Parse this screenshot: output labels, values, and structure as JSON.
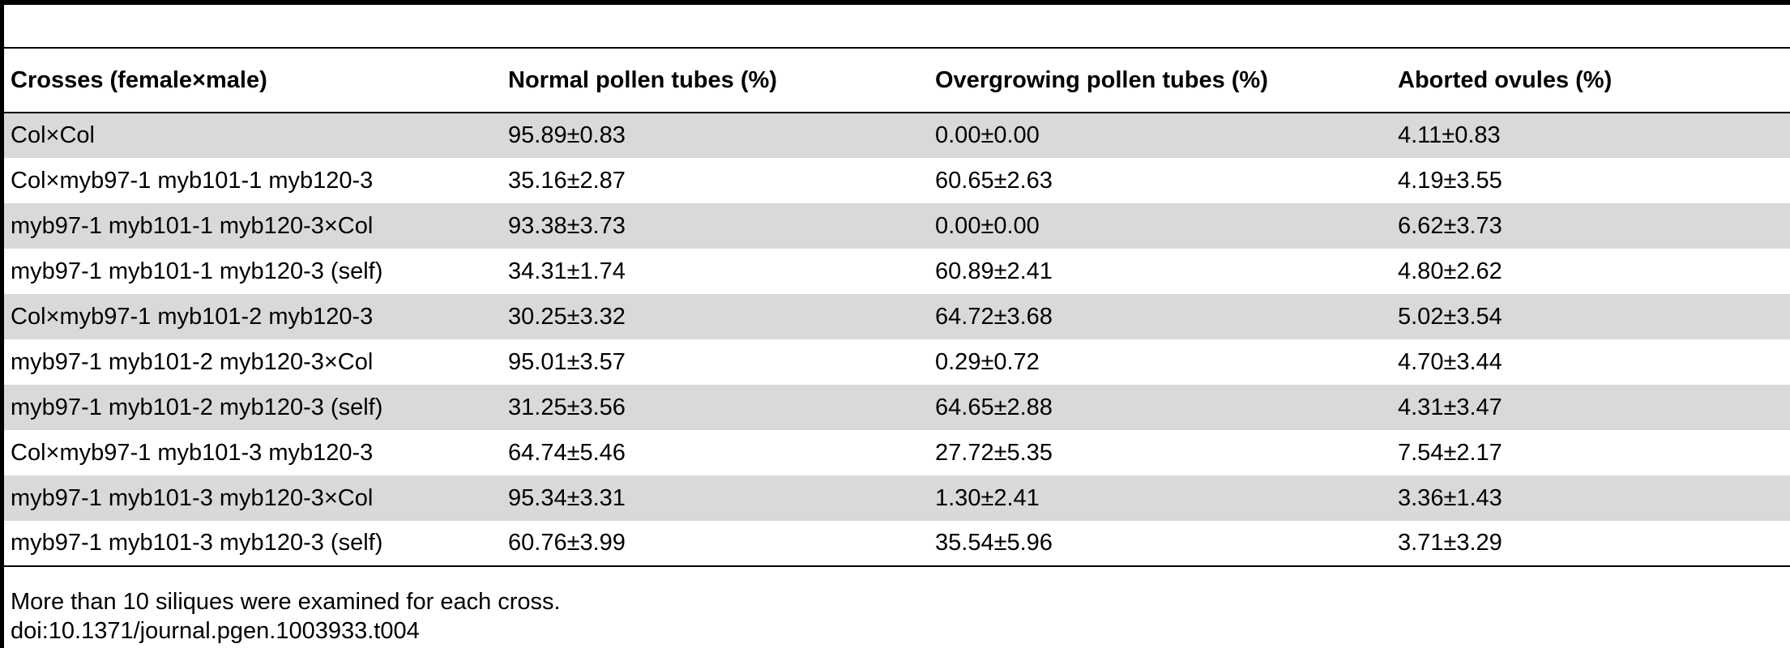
{
  "table": {
    "headers": [
      "Crosses (female×male)",
      "Normal pollen tubes (%)",
      "Overgrowing pollen tubes (%)",
      "Aborted ovules (%)"
    ],
    "rows": [
      {
        "cross": "Col×Col",
        "normal": "95.89±0.83",
        "overgrowing": "0.00±0.00",
        "aborted": "4.11±0.83"
      },
      {
        "cross": "Col×myb97-1 myb101-1 myb120-3",
        "normal": "35.16±2.87",
        "overgrowing": "60.65±2.63",
        "aborted": "4.19±3.55"
      },
      {
        "cross": "myb97-1 myb101-1 myb120-3×Col",
        "normal": "93.38±3.73",
        "overgrowing": "0.00±0.00",
        "aborted": "6.62±3.73"
      },
      {
        "cross": "myb97-1 myb101-1 myb120-3 (self)",
        "normal": "34.31±1.74",
        "overgrowing": "60.89±2.41",
        "aborted": "4.80±2.62"
      },
      {
        "cross": "Col×myb97-1 myb101-2 myb120-3",
        "normal": "30.25±3.32",
        "overgrowing": "64.72±3.68",
        "aborted": "5.02±3.54"
      },
      {
        "cross": "myb97-1 myb101-2 myb120-3×Col",
        "normal": "95.01±3.57",
        "overgrowing": "0.29±0.72",
        "aborted": "4.70±3.44"
      },
      {
        "cross": "myb97-1 myb101-2 myb120-3 (self)",
        "normal": "31.25±3.56",
        "overgrowing": "64.65±2.88",
        "aborted": "4.31±3.47"
      },
      {
        "cross": "Col×myb97-1 myb101-3 myb120-3",
        "normal": "64.74±5.46",
        "overgrowing": "27.72±5.35",
        "aborted": "7.54±2.17"
      },
      {
        "cross": "myb97-1 myb101-3 myb120-3×Col",
        "normal": "95.34±3.31",
        "overgrowing": "1.30±2.41",
        "aborted": "3.36±1.43"
      },
      {
        "cross": "myb97-1 myb101-3 myb120-3 (self)",
        "normal": "60.76±3.99",
        "overgrowing": "35.54±5.96",
        "aborted": "3.71±3.29"
      }
    ]
  },
  "footnote": "More than 10 siliques were examined for each cross.",
  "doi": "doi:10.1371/journal.pgen.1003933.t004"
}
